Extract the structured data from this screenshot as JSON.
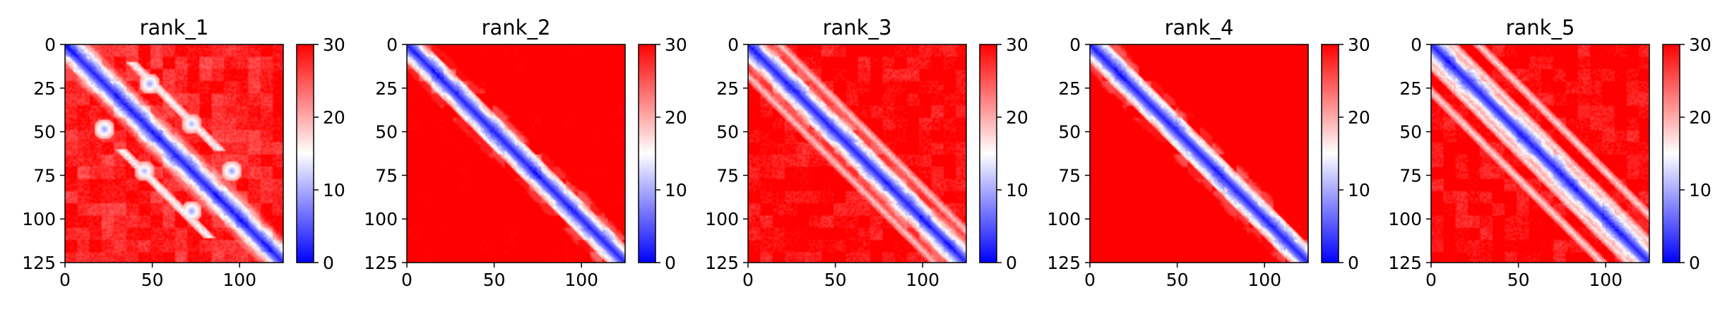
{
  "chart_data": {
    "type": "heatmap",
    "description_source": "distance-map style heatmaps, bwr colormap, values clipped 0-30",
    "colormap": {
      "name": "bwr",
      "stops": [
        "#0000ff",
        "#ffffff",
        "#ff0000"
      ]
    },
    "vmin": 0,
    "vmax": 30,
    "xlim": [
      0,
      125
    ],
    "ylim": [
      125,
      0
    ],
    "xticks": [
      0,
      50,
      100
    ],
    "yticks": [
      0,
      25,
      50,
      75,
      100,
      125
    ],
    "colorbar_ticks": [
      0,
      10,
      20,
      30
    ],
    "panels": [
      {
        "title": "rank_1",
        "diagonal": {
          "value": 2,
          "half_width": 4
        },
        "background_level": 22,
        "features": [
          {
            "kind": "off_diagonal_band",
            "offset": 28,
            "min_value": 13,
            "width": 3,
            "range": [
              10,
              60
            ]
          },
          {
            "kind": "off_diagonal_band",
            "offset": -28,
            "min_value": 13,
            "width": 3,
            "range": [
              60,
              110
            ]
          },
          {
            "kind": "spot",
            "x": 22,
            "y": 48,
            "value": 9
          },
          {
            "kind": "spot",
            "x": 48,
            "y": 22,
            "value": 9
          },
          {
            "kind": "spot",
            "x": 72,
            "y": 95,
            "value": 9
          },
          {
            "kind": "spot",
            "x": 95,
            "y": 72,
            "value": 9
          },
          {
            "kind": "spot",
            "x": 45,
            "y": 72,
            "value": 10
          },
          {
            "kind": "spot",
            "x": 72,
            "y": 45,
            "value": 10
          }
        ]
      },
      {
        "title": "rank_2",
        "diagonal": {
          "value": 2,
          "half_width": 4
        },
        "background_level": 27,
        "features": []
      },
      {
        "title": "rank_3",
        "diagonal": {
          "value": 2,
          "half_width": 4
        },
        "background_level": 24,
        "features": [
          {
            "kind": "off_diagonal_band",
            "offset": 18,
            "min_value": 17,
            "width": 3,
            "range": [
              0,
              125
            ]
          },
          {
            "kind": "off_diagonal_band",
            "offset": -18,
            "min_value": 17,
            "width": 3,
            "range": [
              0,
              125
            ]
          }
        ]
      },
      {
        "title": "rank_4",
        "diagonal": {
          "value": 2,
          "half_width": 4
        },
        "background_level": 28,
        "features": []
      },
      {
        "title": "rank_5",
        "diagonal": {
          "value": 2,
          "half_width": 4
        },
        "background_level": 24,
        "features": [
          {
            "kind": "off_diagonal_band",
            "offset": 12,
            "min_value": 15,
            "width": 3,
            "range": [
              0,
              125
            ]
          },
          {
            "kind": "off_diagonal_band",
            "offset": -12,
            "min_value": 15,
            "width": 3,
            "range": [
              0,
              125
            ]
          },
          {
            "kind": "off_diagonal_band",
            "offset": 27,
            "min_value": 16,
            "width": 3,
            "range": [
              0,
              125
            ]
          },
          {
            "kind": "off_diagonal_band",
            "offset": -27,
            "min_value": 16,
            "width": 3,
            "range": [
              0,
              125
            ]
          }
        ]
      }
    ]
  }
}
